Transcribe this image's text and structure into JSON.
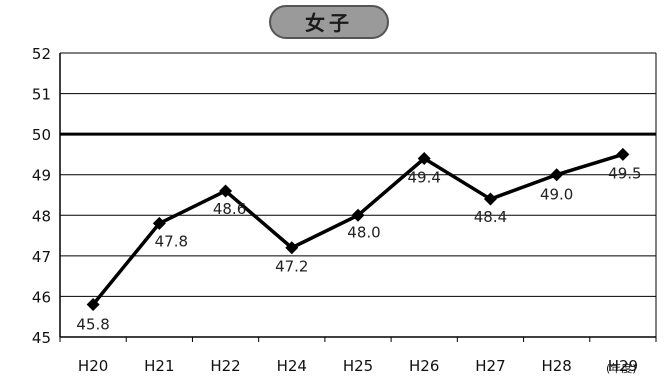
{
  "chart_data": {
    "type": "line",
    "title": "女子",
    "x_unit_label": "(年度)",
    "categories": [
      "H20",
      "H21",
      "H22",
      "H24",
      "H25",
      "H26",
      "H27",
      "H28",
      "H29"
    ],
    "series": [
      {
        "values": [
          45.8,
          47.8,
          48.6,
          47.2,
          48.0,
          49.4,
          48.4,
          49.0,
          49.5
        ],
        "labels": [
          "45.8",
          "47.8",
          "48.6",
          "47.2",
          "48.0",
          "49.4",
          "48.4",
          "49.0",
          "49.5"
        ]
      }
    ],
    "ylim": [
      45,
      52
    ],
    "yticks": [
      45,
      46,
      47,
      48,
      49,
      50,
      51,
      52
    ],
    "reference_line": 50,
    "grid": true,
    "colors": {
      "line": "#000000",
      "grid": "#000000",
      "title_bg": "#9a9a9a"
    }
  }
}
